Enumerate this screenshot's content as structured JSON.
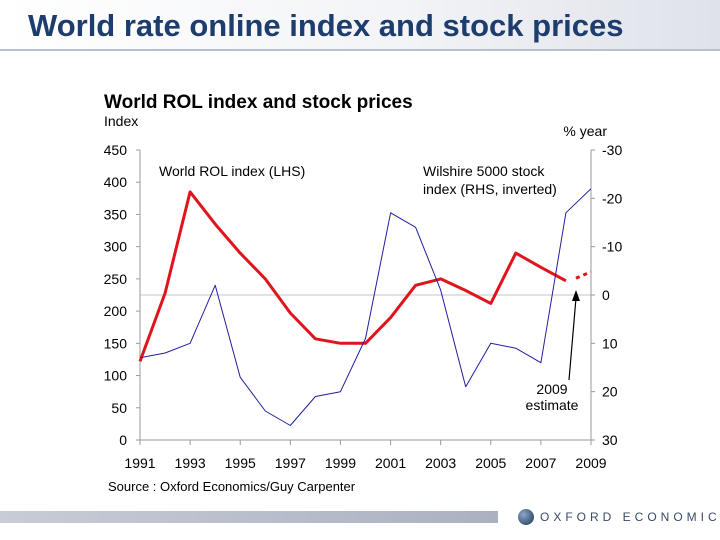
{
  "slide": {
    "title": "World rate online index and stock prices"
  },
  "footer": {
    "logo_text": "OXFORD ECONOMICS"
  },
  "chart_data": {
    "type": "line",
    "title": "World ROL index and stock prices",
    "ylabel_left": "Index",
    "ylabel_right": "% year",
    "source": "Source : Oxford Economics/Guy Carpenter",
    "xlim": [
      1991,
      2009
    ],
    "ylim_left": [
      0,
      450
    ],
    "ylim_right": [
      -30,
      30
    ],
    "right_axis_inverted": true,
    "x_ticks": [
      "1991",
      "1993",
      "1995",
      "1997",
      "1999",
      "2001",
      "2003",
      "2005",
      "2007",
      "2009"
    ],
    "y_ticks_left": [
      "450",
      "400",
      "350",
      "300",
      "250",
      "200",
      "150",
      "100",
      "50",
      "0"
    ],
    "y_ticks_right": [
      "-30",
      "-20",
      "-10",
      "0",
      "10",
      "20",
      "30"
    ],
    "series": [
      {
        "name": "World ROL index (LHS)",
        "label_lines": [
          "World ROL index (LHS)"
        ],
        "axis": "left",
        "color": "#e0141c",
        "x": [
          1991,
          1992,
          1993,
          1994,
          1995,
          1996,
          1997,
          1998,
          1999,
          2000,
          2001,
          2002,
          2003,
          2004,
          2005,
          2006,
          2007,
          2008
        ],
        "y": [
          122,
          228,
          385,
          335,
          290,
          250,
          197,
          157,
          150,
          150,
          190,
          240,
          250,
          232,
          212,
          290,
          268,
          247
        ]
      },
      {
        "name": "Wilshire 5000 stock index (RHS, inverted)",
        "label_lines": [
          "Wilshire 5000 stock",
          "index (RHS, inverted)"
        ],
        "axis": "right",
        "color": "#1f1f9e",
        "x": [
          1991,
          1992,
          1993,
          1994,
          1995,
          1996,
          1997,
          1998,
          1999,
          2000,
          2001,
          2002,
          2003,
          2004,
          2005,
          2006,
          2007,
          2008,
          2009
        ],
        "y": [
          13,
          12,
          10,
          -2,
          17,
          24,
          27,
          21,
          20,
          9,
          -17,
          -14,
          -1,
          19,
          10,
          11,
          14,
          -17,
          -22
        ]
      }
    ],
    "estimate": {
      "label_lines": [
        "2009",
        "estimate"
      ],
      "x": [
        2008.4,
        2009
      ],
      "y": [
        251,
        261
      ],
      "color": "#e0141c"
    }
  }
}
